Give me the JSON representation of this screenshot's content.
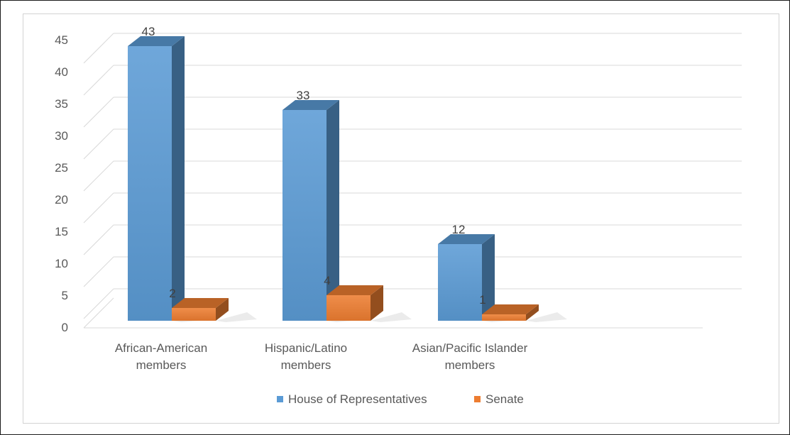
{
  "chart_data": {
    "type": "bar",
    "categories": [
      [
        "African-American",
        "members"
      ],
      [
        "Hispanic/Latino",
        "members"
      ],
      [
        "Asian/Pacific Islander",
        "members"
      ]
    ],
    "series": [
      {
        "name": "House of Representatives",
        "values": [
          43,
          33,
          12
        ],
        "color": "#5b9bd5"
      },
      {
        "name": "Senate",
        "values": [
          2,
          4,
          1
        ],
        "color": "#ed7d31"
      }
    ],
    "ylim": [
      0,
      45
    ],
    "yticks": [
      "0",
      "5",
      "10",
      "15",
      "20",
      "25",
      "30",
      "35",
      "40",
      "45"
    ],
    "grid": true,
    "legend": "bottom",
    "style": "3d-clustered-column"
  }
}
